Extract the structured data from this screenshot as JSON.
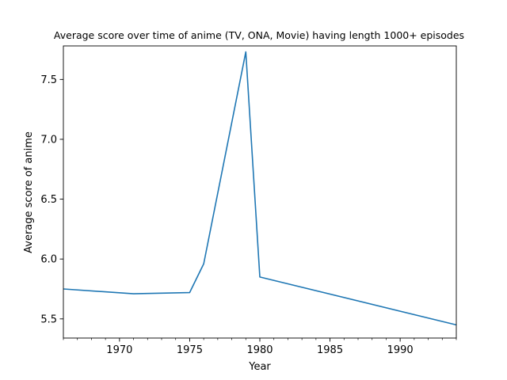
{
  "chart_data": {
    "type": "line",
    "title": "Average score over time of anime (TV, ONA, Movie) having length 1000+ episodes",
    "xlabel": "Year",
    "ylabel": "Average score of anime",
    "xlim": [
      1966,
      1994
    ],
    "ylim": [
      5.34,
      7.78
    ],
    "x_ticks": [
      1970,
      1975,
      1980,
      1985,
      1990
    ],
    "x_tick_labels": [
      "1970",
      "1975",
      "1980",
      "1985",
      "1990"
    ],
    "y_ticks": [
      5.5,
      6.0,
      6.5,
      7.0,
      7.5
    ],
    "y_tick_labels": [
      "5.5",
      "6.0",
      "6.5",
      "7.0",
      "7.5"
    ],
    "x_minor_tick_step": 1,
    "grid": false,
    "legend": "none",
    "series": [
      {
        "color": "#1f77b4",
        "x": [
          1966,
          1971,
          1975,
          1976,
          1979,
          1980,
          1994
        ],
        "y": [
          5.75,
          5.71,
          5.72,
          5.96,
          7.73,
          5.85,
          5.45
        ]
      }
    ]
  }
}
